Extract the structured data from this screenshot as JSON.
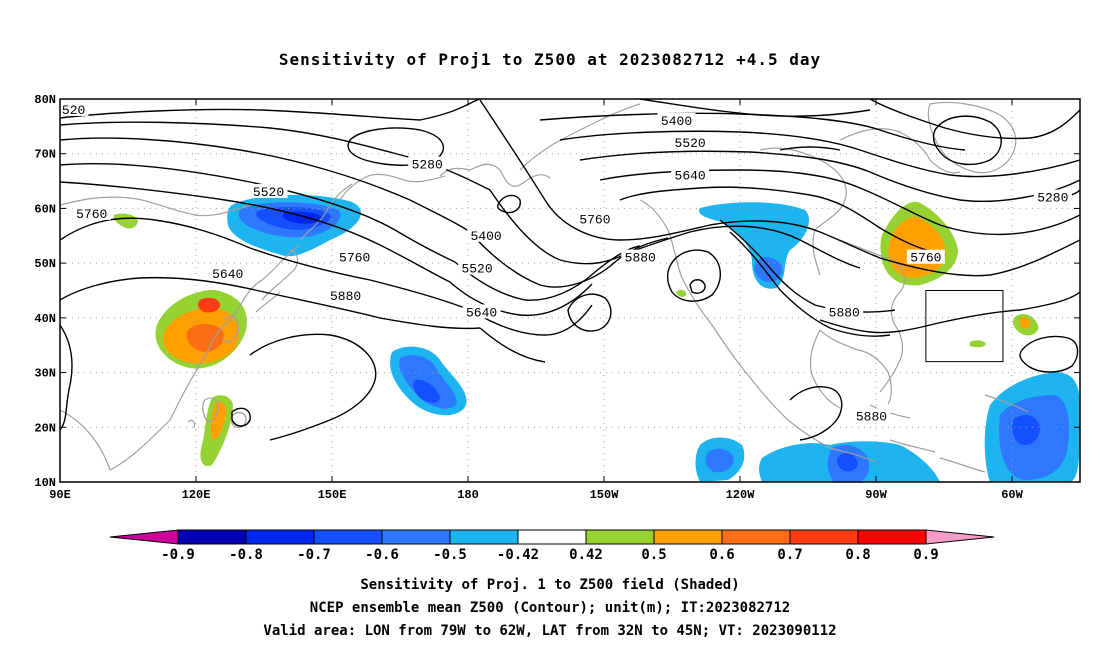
{
  "title": "Sensitivity of Proj1 to Z500 at 2023082712 +4.5 day",
  "map": {
    "lat_labels": [
      "80N",
      "70N",
      "60N",
      "50N",
      "40N",
      "30N",
      "20N",
      "10N"
    ],
    "lat_values": [
      80,
      70,
      60,
      50,
      40,
      30,
      20,
      10
    ],
    "lon_labels": [
      "90E",
      "120E",
      "150E",
      "180",
      "150W",
      "120W",
      "90W",
      "60W"
    ],
    "lon_values": [
      90,
      120,
      150,
      180,
      210,
      240,
      270,
      300
    ],
    "lon_range": [
      90,
      315
    ],
    "lat_range": [
      10,
      80
    ],
    "contour_labels": [
      {
        "text": "520",
        "lon": 93,
        "lat": 78
      },
      {
        "text": "5400",
        "lon": 226,
        "lat": 76
      },
      {
        "text": "5280",
        "lon": 171,
        "lat": 68
      },
      {
        "text": "5520",
        "lon": 229,
        "lat": 72
      },
      {
        "text": "5520",
        "lon": 136,
        "lat": 63
      },
      {
        "text": "5640",
        "lon": 229,
        "lat": 66
      },
      {
        "text": "5280",
        "lon": 309,
        "lat": 62
      },
      {
        "text": "5760",
        "lon": 97,
        "lat": 59
      },
      {
        "text": "5760",
        "lon": 208,
        "lat": 58
      },
      {
        "text": "5400",
        "lon": 184,
        "lat": 55
      },
      {
        "text": "5880",
        "lon": 218,
        "lat": 51
      },
      {
        "text": "5760",
        "lon": 155,
        "lat": 51
      },
      {
        "text": "5760",
        "lon": 281,
        "lat": 51
      },
      {
        "text": "5520",
        "lon": 182,
        "lat": 49
      },
      {
        "text": "5640",
        "lon": 127,
        "lat": 48
      },
      {
        "text": "5880",
        "lon": 153,
        "lat": 44
      },
      {
        "text": "5640",
        "lon": 183,
        "lat": 41
      },
      {
        "text": "5880",
        "lon": 263,
        "lat": 41
      },
      {
        "text": "5880",
        "lon": 269,
        "lat": 22
      }
    ],
    "valid_box": {
      "lon": [
        281,
        298
      ],
      "lat": [
        32,
        45
      ]
    },
    "colors": {
      "contour": "#000000",
      "coast": "#a0a0a0",
      "grid": "#a0a0a0"
    }
  },
  "colorbar": {
    "labels": [
      "-0.9",
      "-0.8",
      "-0.7",
      "-0.6",
      "-0.5",
      "-0.42",
      "0.42",
      "0.5",
      "0.6",
      "0.7",
      "0.8",
      "0.9"
    ],
    "colors": [
      "#cc0099",
      "#0000b4",
      "#0028f0",
      "#1450ff",
      "#2d78ff",
      "#1eb4f0",
      "#ffffff",
      "#96d232",
      "#ffa000",
      "#ff6e14",
      "#ff3c14",
      "#ff0000",
      "#f59bc8"
    ]
  },
  "caption": [
    "Sensitivity of Proj. 1 to Z500 field (Shaded)",
    "NCEP ensemble mean Z500 (Contour); unit(m); IT:2023082712",
    "Valid area: LON from 79W to 62W, LAT from 32N to 45N; VT: 2023090112"
  ]
}
